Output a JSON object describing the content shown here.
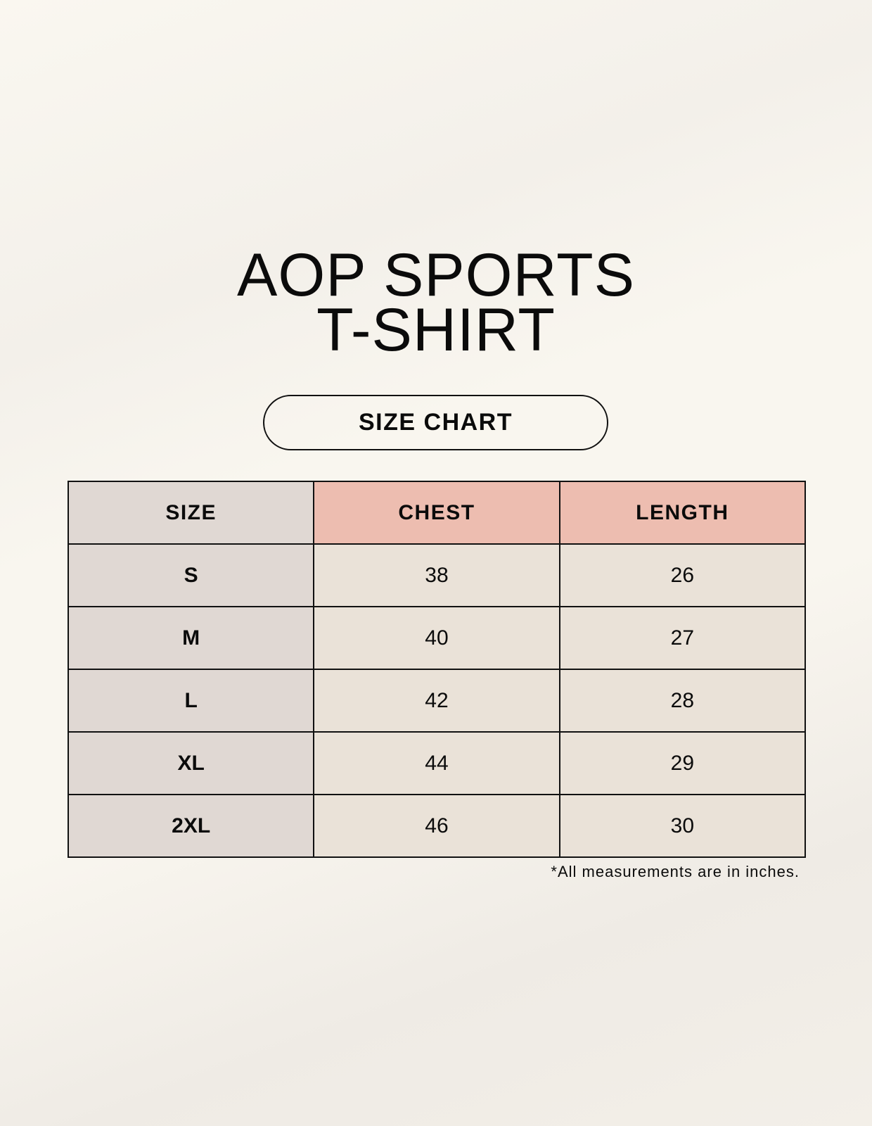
{
  "title": {
    "line1": "AOP SPORTS",
    "line2": "T-SHIRT"
  },
  "badge": "SIZE CHART",
  "table": {
    "headers": [
      "SIZE",
      "CHEST",
      "LENGTH"
    ],
    "rows": [
      [
        "S",
        "38",
        "26"
      ],
      [
        "M",
        "40",
        "27"
      ],
      [
        "L",
        "42",
        "28"
      ],
      [
        "XL",
        "44",
        "29"
      ],
      [
        "2XL",
        "46",
        "30"
      ]
    ]
  },
  "footnote": "*All measurements are in inches.",
  "colors": {
    "size_column": "#e0d8d3",
    "header_accent": "#edbdb0",
    "cell": "#eae2d8"
  }
}
